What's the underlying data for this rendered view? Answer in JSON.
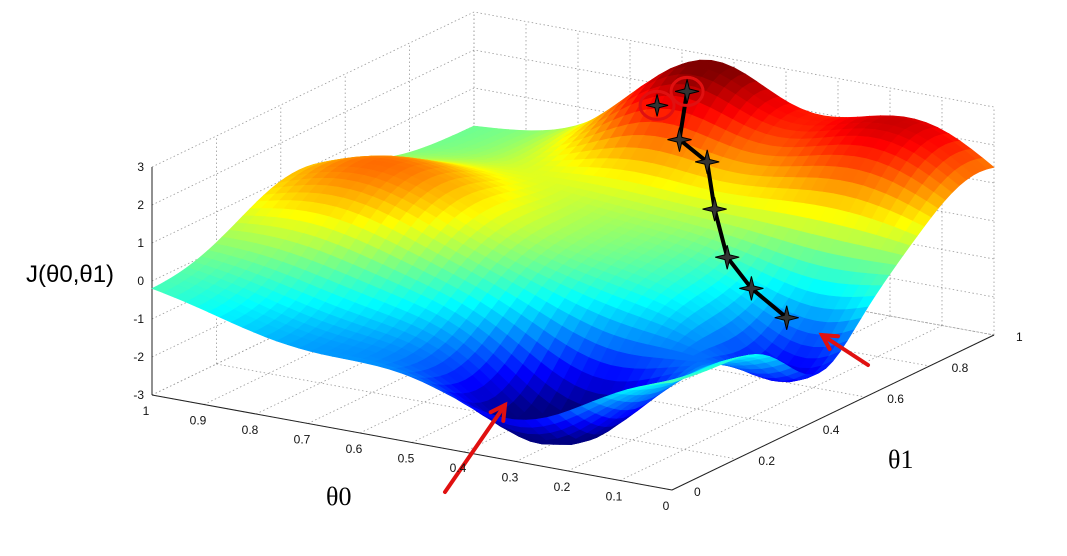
{
  "chart_data": {
    "type": "surface",
    "zlabel": "J(θ0,θ1)",
    "xlabel": "θ0",
    "ylabel": "θ1",
    "zlim": [
      -3,
      3
    ],
    "z_ticks": [
      "-3",
      "-2",
      "-1",
      "0",
      "1",
      "2",
      "3"
    ],
    "theta0_ticks": [
      "1",
      "0.9",
      "0.8",
      "0.7",
      "0.6",
      "0.5",
      "0.4",
      "0.3",
      "0.2",
      "0.1",
      "0"
    ],
    "theta1_ticks": [
      "0",
      "0.2",
      "0.4",
      "0.6",
      "0.8",
      "1"
    ],
    "colormap": "jet",
    "descent_path": [
      {
        "theta0": 0.55,
        "theta1": 0.05,
        "z": 2.3
      },
      {
        "theta0": 0.52,
        "theta1": 0.13,
        "z": 1.4
      },
      {
        "theta0": 0.45,
        "theta1": 0.16,
        "z": 1.1
      },
      {
        "theta0": 0.38,
        "theta1": 0.26,
        "z": 0.4
      },
      {
        "theta0": 0.3,
        "theta1": 0.36,
        "z": -0.3
      },
      {
        "theta0": 0.22,
        "theta1": 0.42,
        "z": -0.7
      },
      {
        "theta0": 0.13,
        "theta1": 0.46,
        "z": -1.1
      }
    ],
    "starting_points_circled": 2,
    "annotations": [
      "red arrow to minimum",
      "red arrow to minimum"
    ],
    "colors": {
      "path": "#000000",
      "annotation": "#e01010"
    }
  }
}
